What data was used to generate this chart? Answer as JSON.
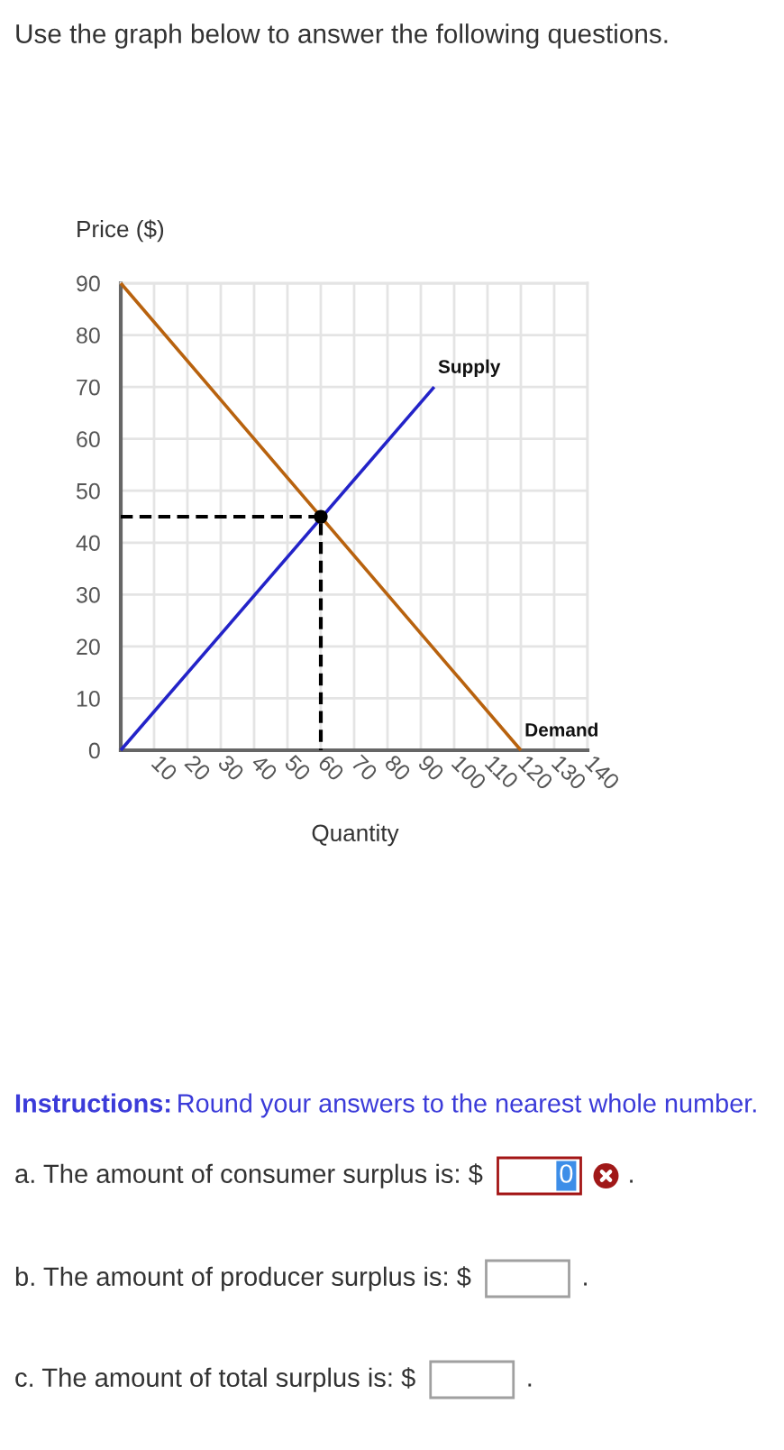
{
  "chart_data": {
    "type": "line",
    "title": "Use the graph below to answer the following questions.",
    "xlabel": "Quantity",
    "ylabel": "Price ($)",
    "series": [
      {
        "name": "Demand",
        "color": "#b8620e",
        "x": [
          0,
          120
        ],
        "values": [
          90,
          0
        ]
      },
      {
        "name": "Supply",
        "color": "#2323c8",
        "x": [
          0,
          94
        ],
        "values": [
          0,
          70
        ]
      },
      {
        "color": "#000000",
        "line_style": "dashed",
        "x": [
          0,
          60,
          60
        ],
        "values": [
          45,
          45,
          0
        ]
      },
      {
        "type": "scatter",
        "color": "#000000",
        "marker": "circle",
        "x": [
          60
        ],
        "values": [
          45
        ]
      }
    ],
    "xlim": [
      0,
      140
    ],
    "ylim": [
      0,
      90
    ],
    "xticks": [
      10,
      20,
      30,
      40,
      50,
      60,
      70,
      80,
      90,
      100,
      110,
      120,
      130,
      140
    ],
    "yticks": [
      0,
      10,
      20,
      30,
      40,
      50,
      60,
      70,
      80,
      90
    ],
    "grid": true,
    "annotations": [
      "Instructions:",
      "Round your answers to the nearest whole number.",
      "a. The amount of consumer surplus is: $",
      "0",
      ".",
      "b. The amount of producer surplus is: $",
      ".",
      "c. The amount of total surplus is: $",
      "."
    ]
  }
}
